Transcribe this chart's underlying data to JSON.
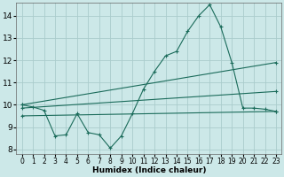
{
  "xlabel": "Humidex (Indice chaleur)",
  "ylabel": "",
  "bg_color": "#cce8e8",
  "grid_color": "#aacccc",
  "line_color": "#1a6b5a",
  "xlim": [
    -0.5,
    23.5
  ],
  "ylim": [
    7.8,
    14.6
  ],
  "yticks": [
    8,
    9,
    10,
    11,
    12,
    13,
    14
  ],
  "xticks": [
    0,
    1,
    2,
    3,
    4,
    5,
    6,
    7,
    8,
    9,
    10,
    11,
    12,
    13,
    14,
    15,
    16,
    17,
    18,
    19,
    20,
    21,
    22,
    23
  ],
  "series": [
    {
      "x": [
        0,
        1,
        2,
        3,
        4,
        5,
        6,
        7,
        8,
        9,
        10,
        11,
        12,
        13,
        14,
        15,
        16,
        17,
        18,
        19,
        20,
        21,
        22,
        23
      ],
      "y": [
        10.0,
        9.9,
        9.75,
        8.6,
        8.65,
        9.6,
        8.75,
        8.65,
        8.05,
        8.6,
        9.6,
        10.7,
        11.5,
        12.2,
        12.4,
        13.3,
        14.0,
        14.5,
        13.5,
        11.9,
        9.85,
        9.85,
        9.8,
        9.7
      ]
    },
    {
      "x": [
        0,
        23
      ],
      "y": [
        10.0,
        11.9
      ]
    },
    {
      "x": [
        0,
        23
      ],
      "y": [
        9.85,
        10.6
      ]
    },
    {
      "x": [
        0,
        23
      ],
      "y": [
        9.5,
        9.7
      ]
    }
  ]
}
